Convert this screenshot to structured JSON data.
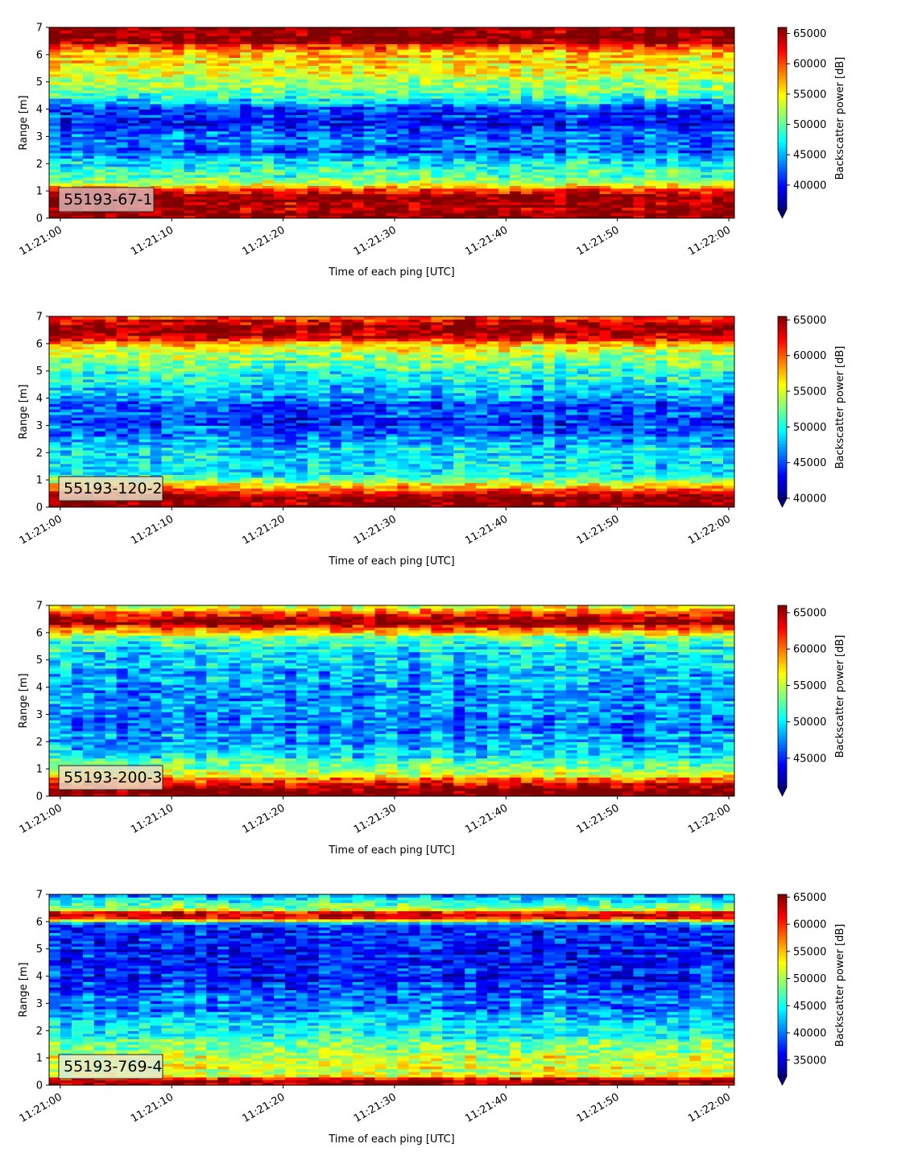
{
  "figure": {
    "xlabel": "Time of each ping [UTC]",
    "ylabel": "Range [m]",
    "colorbar_label": "Backscatter power [dB]",
    "colormap": "jet",
    "x_tick_labels": [
      "11:21:00",
      "11:21:10",
      "11:21:20",
      "11:21:30",
      "11:21:40",
      "11:21:50",
      "11:22:00"
    ],
    "y_tick_labels": [
      "0",
      "1",
      "2",
      "3",
      "4",
      "5",
      "6",
      "7"
    ]
  },
  "chart_data": [
    {
      "type": "heatmap",
      "label": "55193-67-1",
      "label_box_color": "#d9b1b1",
      "xlabel": "Time of each ping [UTC]",
      "ylabel": "Range [m]",
      "xlim": [
        "11:20:59",
        "11:22:00"
      ],
      "ylim": [
        0,
        7
      ],
      "clim": [
        36000,
        66000
      ],
      "colorbar_ticks": [
        40000,
        45000,
        50000,
        55000,
        60000,
        65000
      ],
      "colorbar_label": "Backscatter power [dB]",
      "profile": [
        {
          "range": 0.0,
          "value": 66000
        },
        {
          "range": 0.3,
          "value": 66000
        },
        {
          "range": 0.8,
          "value": 65000
        },
        {
          "range": 1.1,
          "value": 60000
        },
        {
          "range": 1.3,
          "value": 52000
        },
        {
          "range": 2.0,
          "value": 47000
        },
        {
          "range": 2.5,
          "value": 42000
        },
        {
          "range": 3.0,
          "value": 44000
        },
        {
          "range": 3.5,
          "value": 40000
        },
        {
          "range": 4.1,
          "value": 43000
        },
        {
          "range": 4.6,
          "value": 50000
        },
        {
          "range": 5.3,
          "value": 54000
        },
        {
          "range": 6.0,
          "value": 56000
        },
        {
          "range": 6.3,
          "value": 60000
        },
        {
          "range": 6.5,
          "value": 66000
        },
        {
          "range": 7.0,
          "value": 66000
        }
      ]
    },
    {
      "type": "heatmap",
      "label": "55193-120-2",
      "label_box_color": "#e7dcc4",
      "xlabel": "Time of each ping [UTC]",
      "ylabel": "Range [m]",
      "xlim": [
        "11:20:59",
        "11:22:00"
      ],
      "ylim": [
        0,
        7
      ],
      "clim": [
        40000,
        65500
      ],
      "colorbar_ticks": [
        40000,
        45000,
        50000,
        55000,
        60000,
        65000
      ],
      "colorbar_label": "Backscatter power [dB]",
      "profile": [
        {
          "range": 0.0,
          "value": 65500
        },
        {
          "range": 0.4,
          "value": 65500
        },
        {
          "range": 0.7,
          "value": 58000
        },
        {
          "range": 1.2,
          "value": 50000
        },
        {
          "range": 2.0,
          "value": 49000
        },
        {
          "range": 2.6,
          "value": 46000
        },
        {
          "range": 3.2,
          "value": 44000
        },
        {
          "range": 3.8,
          "value": 46000
        },
        {
          "range": 4.5,
          "value": 49000
        },
        {
          "range": 5.3,
          "value": 52000
        },
        {
          "range": 5.9,
          "value": 56000
        },
        {
          "range": 6.2,
          "value": 63000
        },
        {
          "range": 6.6,
          "value": 65500
        },
        {
          "range": 7.0,
          "value": 60000
        }
      ]
    },
    {
      "type": "heatmap",
      "label": "55193-200-3",
      "label_box_color": "#eadcc3",
      "xlabel": "Time of each ping [UTC]",
      "ylabel": "Range [m]",
      "xlim": [
        "11:20:59",
        "11:22:00"
      ],
      "ylim": [
        0,
        7
      ],
      "clim": [
        41000,
        66000
      ],
      "colorbar_ticks": [
        45000,
        50000,
        55000,
        60000,
        65000
      ],
      "colorbar_label": "Backscatter power [dB]",
      "profile": [
        {
          "range": 0.0,
          "value": 66000
        },
        {
          "range": 0.3,
          "value": 66000
        },
        {
          "range": 0.6,
          "value": 60000
        },
        {
          "range": 0.9,
          "value": 55000
        },
        {
          "range": 1.5,
          "value": 50000
        },
        {
          "range": 2.2,
          "value": 48000
        },
        {
          "range": 3.0,
          "value": 47000
        },
        {
          "range": 4.0,
          "value": 48000
        },
        {
          "range": 5.0,
          "value": 49000
        },
        {
          "range": 5.8,
          "value": 52000
        },
        {
          "range": 6.1,
          "value": 60000
        },
        {
          "range": 6.4,
          "value": 66000
        },
        {
          "range": 6.7,
          "value": 62000
        },
        {
          "range": 7.0,
          "value": 56000
        }
      ]
    },
    {
      "type": "heatmap",
      "label": "55193-769-4",
      "label_box_color": "#e6ead0",
      "xlabel": "Time of each ping [UTC]",
      "ylabel": "Range [m]",
      "xlim": [
        "11:20:59",
        "11:22:00"
      ],
      "ylim": [
        0,
        7
      ],
      "clim": [
        32000,
        65500
      ],
      "colorbar_ticks": [
        35000,
        40000,
        45000,
        50000,
        55000,
        60000,
        65000
      ],
      "colorbar_label": "Backscatter power [dB]",
      "profile": [
        {
          "range": 0.0,
          "value": 65500
        },
        {
          "range": 0.2,
          "value": 65500
        },
        {
          "range": 0.35,
          "value": 52000
        },
        {
          "range": 0.8,
          "value": 52000
        },
        {
          "range": 1.5,
          "value": 48000
        },
        {
          "range": 2.2,
          "value": 44000
        },
        {
          "range": 3.0,
          "value": 40000
        },
        {
          "range": 4.0,
          "value": 37000
        },
        {
          "range": 5.0,
          "value": 37000
        },
        {
          "range": 5.9,
          "value": 38000
        },
        {
          "range": 6.1,
          "value": 60000
        },
        {
          "range": 6.3,
          "value": 65500
        },
        {
          "range": 6.5,
          "value": 48000
        },
        {
          "range": 7.0,
          "value": 42000
        }
      ]
    }
  ]
}
